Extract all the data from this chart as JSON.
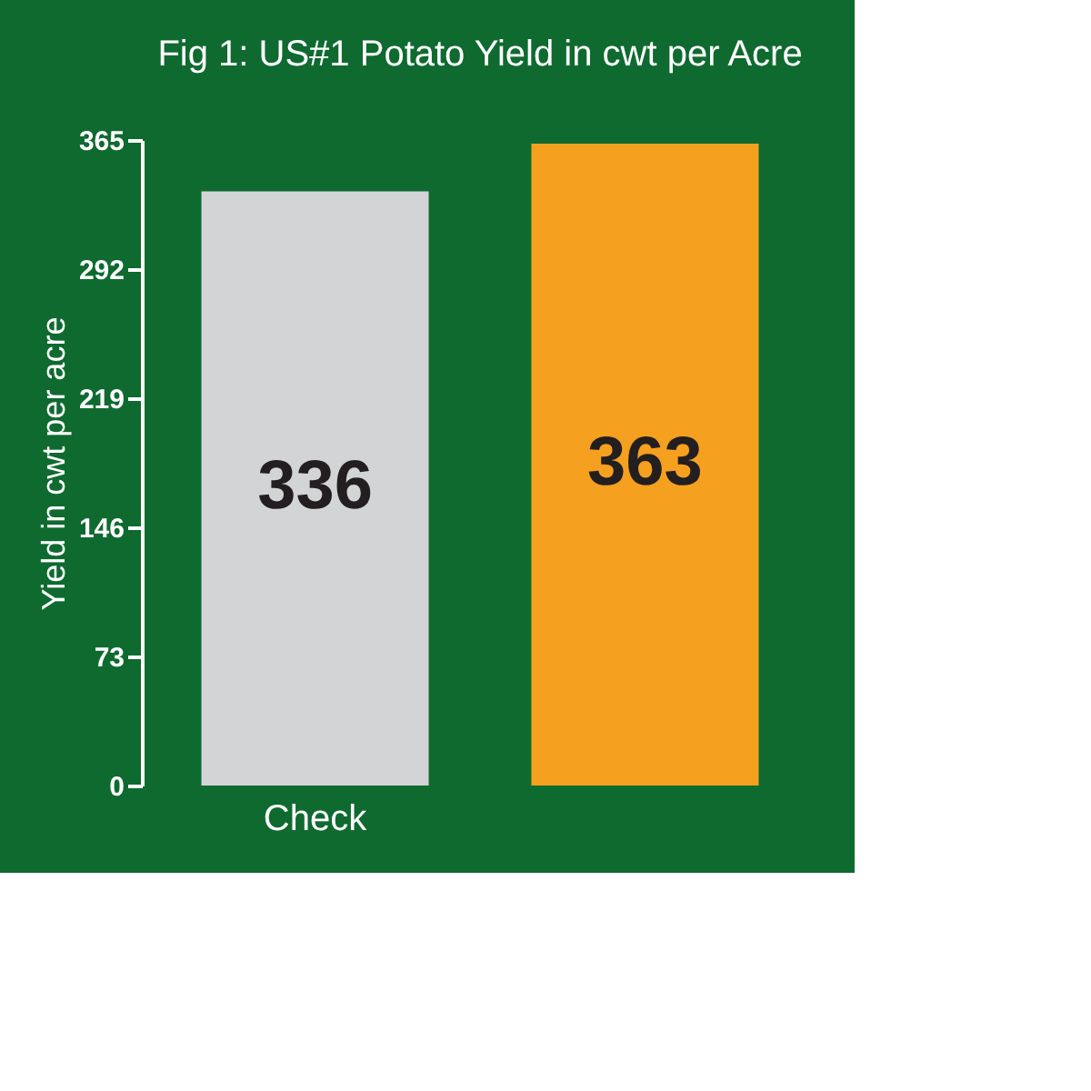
{
  "chart_data": {
    "type": "bar",
    "title": "Fig 1:  US#1 Potato Yield in cwt per Acre",
    "ylabel": "Yield in cwt  per acre",
    "categories": [
      "Check",
      null
    ],
    "values": [
      336,
      363
    ],
    "colors": [
      "#d3d4d6",
      "#f6a01f"
    ],
    "ylim": [
      0,
      365
    ],
    "yticks": [
      0,
      73,
      146,
      219,
      292,
      365
    ],
    "data_labels": true
  }
}
